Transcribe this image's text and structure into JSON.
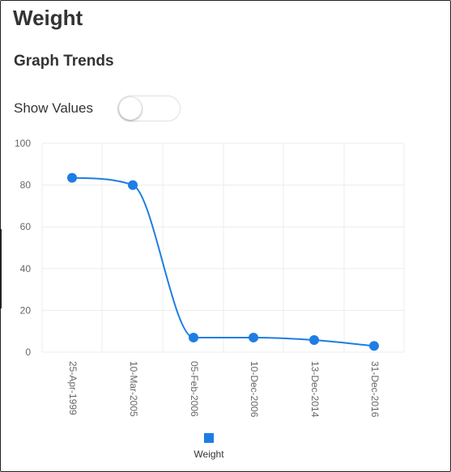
{
  "page": {
    "title": "Weight"
  },
  "section": {
    "title": "Graph Trends"
  },
  "controls": {
    "show_values_label": "Show Values",
    "show_values_on": false
  },
  "chart_data": {
    "type": "line",
    "title": "",
    "xlabel": "",
    "ylabel": "",
    "ylim": [
      0,
      100
    ],
    "yticks": [
      "0",
      "20",
      "40",
      "60",
      "80",
      "100"
    ],
    "grid": true,
    "legend_position": "bottom",
    "categories": [
      "25-Apr-1999",
      "10-Mar-2005",
      "05-Feb-2006",
      "10-Dec-2006",
      "13-Dec-2014",
      "31-Dec-2016"
    ],
    "series": [
      {
        "name": "Weight",
        "color": "#1e7de3",
        "values": [
          83.5,
          80,
          7,
          7,
          5.8,
          3
        ]
      }
    ]
  }
}
